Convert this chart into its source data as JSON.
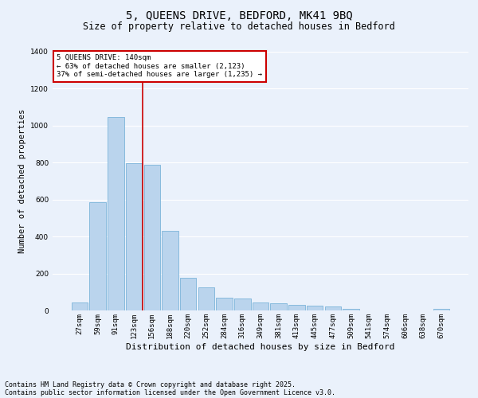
{
  "title": "5, QUEENS DRIVE, BEDFORD, MK41 9BQ",
  "subtitle": "Size of property relative to detached houses in Bedford",
  "xlabel": "Distribution of detached houses by size in Bedford",
  "ylabel": "Number of detached properties",
  "categories": [
    "27sqm",
    "59sqm",
    "91sqm",
    "123sqm",
    "156sqm",
    "188sqm",
    "220sqm",
    "252sqm",
    "284sqm",
    "316sqm",
    "349sqm",
    "381sqm",
    "413sqm",
    "445sqm",
    "477sqm",
    "509sqm",
    "541sqm",
    "574sqm",
    "606sqm",
    "638sqm",
    "670sqm"
  ],
  "values": [
    45,
    585,
    1045,
    795,
    790,
    430,
    175,
    125,
    70,
    65,
    45,
    40,
    30,
    25,
    20,
    10,
    0,
    0,
    0,
    0,
    10
  ],
  "bar_color": "#bad4ed",
  "bar_edge_color": "#6aaad4",
  "bar_width": 0.9,
  "ylim": [
    0,
    1400
  ],
  "yticks": [
    0,
    200,
    400,
    600,
    800,
    1000,
    1200,
    1400
  ],
  "vline_x": 3.5,
  "vline_color": "#cc0000",
  "annotation_text": "5 QUEENS DRIVE: 140sqm\n← 63% of detached houses are smaller (2,123)\n37% of semi-detached houses are larger (1,235) →",
  "annotation_box_facecolor": "#ffffff",
  "annotation_box_edgecolor": "#cc0000",
  "footnote1": "Contains HM Land Registry data © Crown copyright and database right 2025.",
  "footnote2": "Contains public sector information licensed under the Open Government Licence v3.0.",
  "bg_color": "#eaf1fb",
  "grid_color": "#ffffff",
  "title_fontsize": 10,
  "subtitle_fontsize": 8.5,
  "xlabel_fontsize": 8,
  "ylabel_fontsize": 7.5,
  "tick_fontsize": 6.5,
  "annot_fontsize": 6.5,
  "footnote_fontsize": 6
}
